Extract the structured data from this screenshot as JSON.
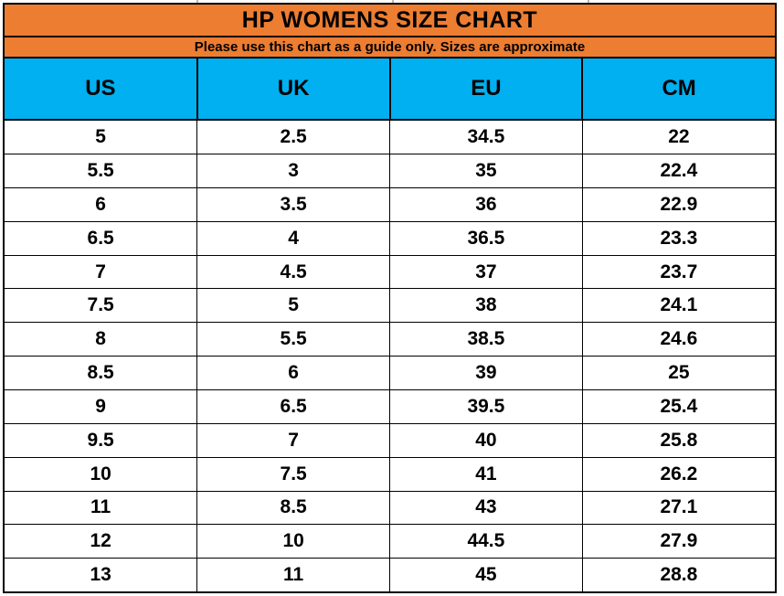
{
  "title": "HP WOMENS SIZE CHART",
  "subtitle": "Please use this chart as a guide only. Sizes are approximate",
  "colors": {
    "title_band_bg": "#ED7D31",
    "column_header_bg": "#00B0F0",
    "border": "#000000",
    "text": "#000000",
    "row_bg": "#FFFFFF"
  },
  "chart_data": {
    "type": "table",
    "title": "HP WOMENS SIZE CHART",
    "subtitle": "Please use this chart as a guide only. Sizes are approximate",
    "columns": [
      "US",
      "UK",
      "EU",
      "CM"
    ],
    "rows": [
      [
        "5",
        "2.5",
        "34.5",
        "22"
      ],
      [
        "5.5",
        "3",
        "35",
        "22.4"
      ],
      [
        "6",
        "3.5",
        "36",
        "22.9"
      ],
      [
        "6.5",
        "4",
        "36.5",
        "23.3"
      ],
      [
        "7",
        "4.5",
        "37",
        "23.7"
      ],
      [
        "7.5",
        "5",
        "38",
        "24.1"
      ],
      [
        "8",
        "5.5",
        "38.5",
        "24.6"
      ],
      [
        "8.5",
        "6",
        "39",
        "25"
      ],
      [
        "9",
        "6.5",
        "39.5",
        "25.4"
      ],
      [
        "9.5",
        "7",
        "40",
        "25.8"
      ],
      [
        "10",
        "7.5",
        "41",
        "26.2"
      ],
      [
        "11",
        "8.5",
        "43",
        "27.1"
      ],
      [
        "12",
        "10",
        "44.5",
        "27.9"
      ],
      [
        "13",
        "11",
        "45",
        "28.8"
      ]
    ]
  }
}
